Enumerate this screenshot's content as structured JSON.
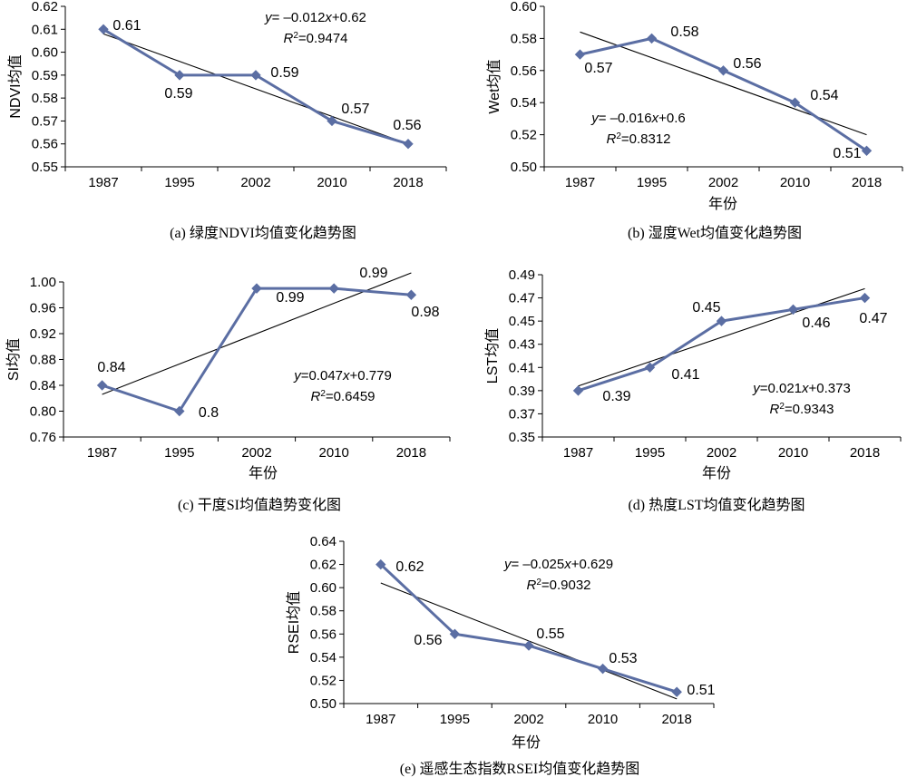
{
  "chart_data": [
    {
      "type": "line",
      "categories": [
        "1987",
        "1995",
        "2002",
        "2010",
        "2018"
      ],
      "series": [
        {
          "values": [
            0.61,
            0.59,
            0.59,
            0.57,
            0.56
          ]
        }
      ],
      "data_labels": [
        "0.61",
        "0.59",
        "0.59",
        "0.57",
        "0.56"
      ],
      "trendline": {
        "slope": -0.012,
        "intercept": 0.62
      },
      "equation": "y= –0.012x+0.62",
      "r2": "R²=0.9474",
      "ylabel": "NDVI均值",
      "xlabel": "",
      "yticks": [
        "0.62",
        "0.61",
        "0.60",
        "0.59",
        "0.58",
        "0.57",
        "0.56",
        "0.55"
      ],
      "ylim": [
        0.55,
        0.62
      ],
      "caption": "(a) 绿度NDVI均值变化趋势图",
      "line_color": "#5b6ea3",
      "trend_color": "#000000"
    },
    {
      "type": "line",
      "categories": [
        "1987",
        "1995",
        "2002",
        "2010",
        "2018"
      ],
      "series": [
        {
          "values": [
            0.57,
            0.58,
            0.56,
            0.54,
            0.51
          ]
        }
      ],
      "data_labels": [
        "0.57",
        "0.58",
        "0.56",
        "0.54",
        "0.51"
      ],
      "trendline": {
        "slope": -0.016,
        "intercept": 0.6
      },
      "equation": "y= –0.016x+0.6",
      "r2": "R²=0.8312",
      "ylabel": "Wet均值",
      "xlabel": "年份",
      "yticks": [
        "0.60",
        "0.58",
        "0.56",
        "0.54",
        "0.52",
        "0.50"
      ],
      "ylim": [
        0.5,
        0.6
      ],
      "caption": "(b) 湿度Wet均值变化趋势图",
      "line_color": "#5b6ea3",
      "trend_color": "#000000"
    },
    {
      "type": "line",
      "categories": [
        "1987",
        "1995",
        "2002",
        "2010",
        "2018"
      ],
      "series": [
        {
          "values": [
            0.84,
            0.8,
            0.99,
            0.99,
            0.98
          ]
        }
      ],
      "data_labels": [
        "0.84",
        "0.8",
        "0.99",
        "0.99",
        "0.98"
      ],
      "trendline": {
        "slope": 0.047,
        "intercept": 0.779
      },
      "equation": "y=0.047x+0.779",
      "r2": "R²=0.6459",
      "ylabel": "SI均值",
      "xlabel": "年份",
      "yticks": [
        "1.00",
        "0.96",
        "0.92",
        "0.88",
        "0.84",
        "0.80",
        "0.76"
      ],
      "ylim": [
        0.76,
        1.0
      ],
      "caption": "(c) 干度SI均值趋势变化图",
      "line_color": "#5b6ea3",
      "trend_color": "#000000"
    },
    {
      "type": "line",
      "categories": [
        "1987",
        "1995",
        "2002",
        "2010",
        "2018"
      ],
      "series": [
        {
          "values": [
            0.39,
            0.41,
            0.45,
            0.46,
            0.47
          ]
        }
      ],
      "data_labels": [
        "0.39",
        "0.41",
        "0.45",
        "0.46",
        "0.47"
      ],
      "trendline": {
        "slope": 0.021,
        "intercept": 0.373
      },
      "equation": "y=0.021x+0.373",
      "r2": "R²=0.9343",
      "ylabel": "LST均值",
      "xlabel": "年份",
      "yticks": [
        "0.49",
        "0.47",
        "0.45",
        "0.43",
        "0.41",
        "0.39",
        "0.37",
        "0.35"
      ],
      "ylim": [
        0.35,
        0.49
      ],
      "caption": "(d) 热度LST均值变化趋势图",
      "line_color": "#5b6ea3",
      "trend_color": "#000000"
    },
    {
      "type": "line",
      "categories": [
        "1987",
        "1995",
        "2002",
        "2010",
        "2018"
      ],
      "series": [
        {
          "values": [
            0.62,
            0.56,
            0.55,
            0.53,
            0.51
          ]
        }
      ],
      "data_labels": [
        "0.62",
        "0.56",
        "0.55",
        "0.53",
        "0.51"
      ],
      "trendline": {
        "slope": -0.025,
        "intercept": 0.629
      },
      "equation": "y= –0.025x+0.629",
      "r2": "R²=0.9032",
      "ylabel": "RSEI均值",
      "xlabel": "年份",
      "yticks": [
        "0.64",
        "0.62",
        "0.60",
        "0.58",
        "0.56",
        "0.54",
        "0.52",
        "0.50"
      ],
      "ylim": [
        0.5,
        0.64
      ],
      "caption": "(e) 遥感生态指数RSEI均值变化趋势图",
      "line_color": "#5b6ea3",
      "trend_color": "#000000"
    }
  ]
}
